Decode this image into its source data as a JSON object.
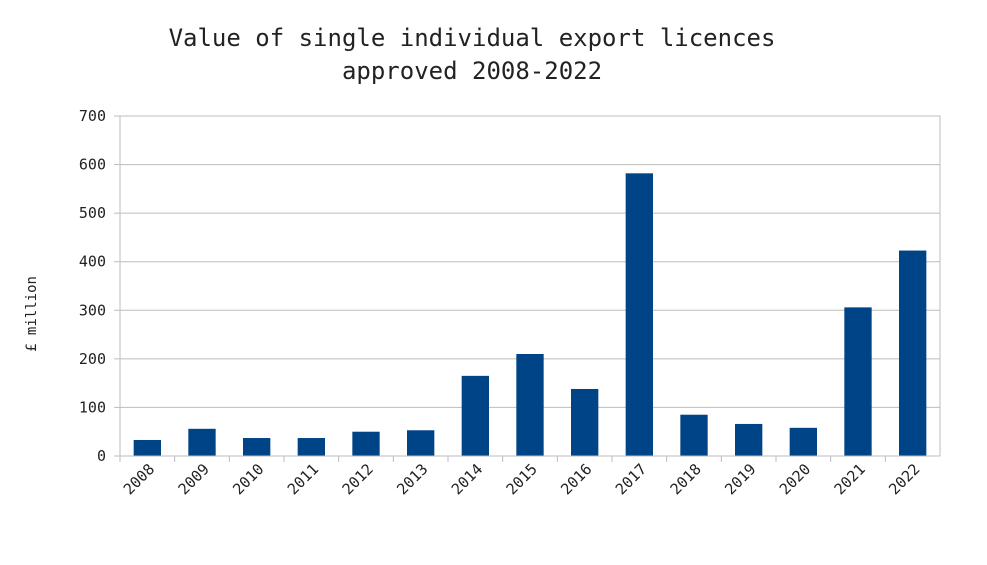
{
  "chart_data": {
    "type": "bar",
    "title_line1": "Value of single individual export licences",
    "title_line2": "approved 2008-2022",
    "xlabel": "",
    "ylabel": "£ million",
    "ylim": [
      0,
      700
    ],
    "yticks": [
      "0",
      "100",
      "200",
      "300",
      "400",
      "500",
      "600",
      "700"
    ],
    "grid": true,
    "bar_color": "#004488",
    "categories": [
      "2008",
      "2009",
      "2010",
      "2011",
      "2012",
      "2013",
      "2014",
      "2015",
      "2016",
      "2017",
      "2018",
      "2019",
      "2020",
      "2021",
      "2022"
    ],
    "values": [
      33,
      56,
      37,
      37,
      50,
      53,
      165,
      210,
      138,
      582,
      85,
      66,
      58,
      306,
      423
    ]
  }
}
